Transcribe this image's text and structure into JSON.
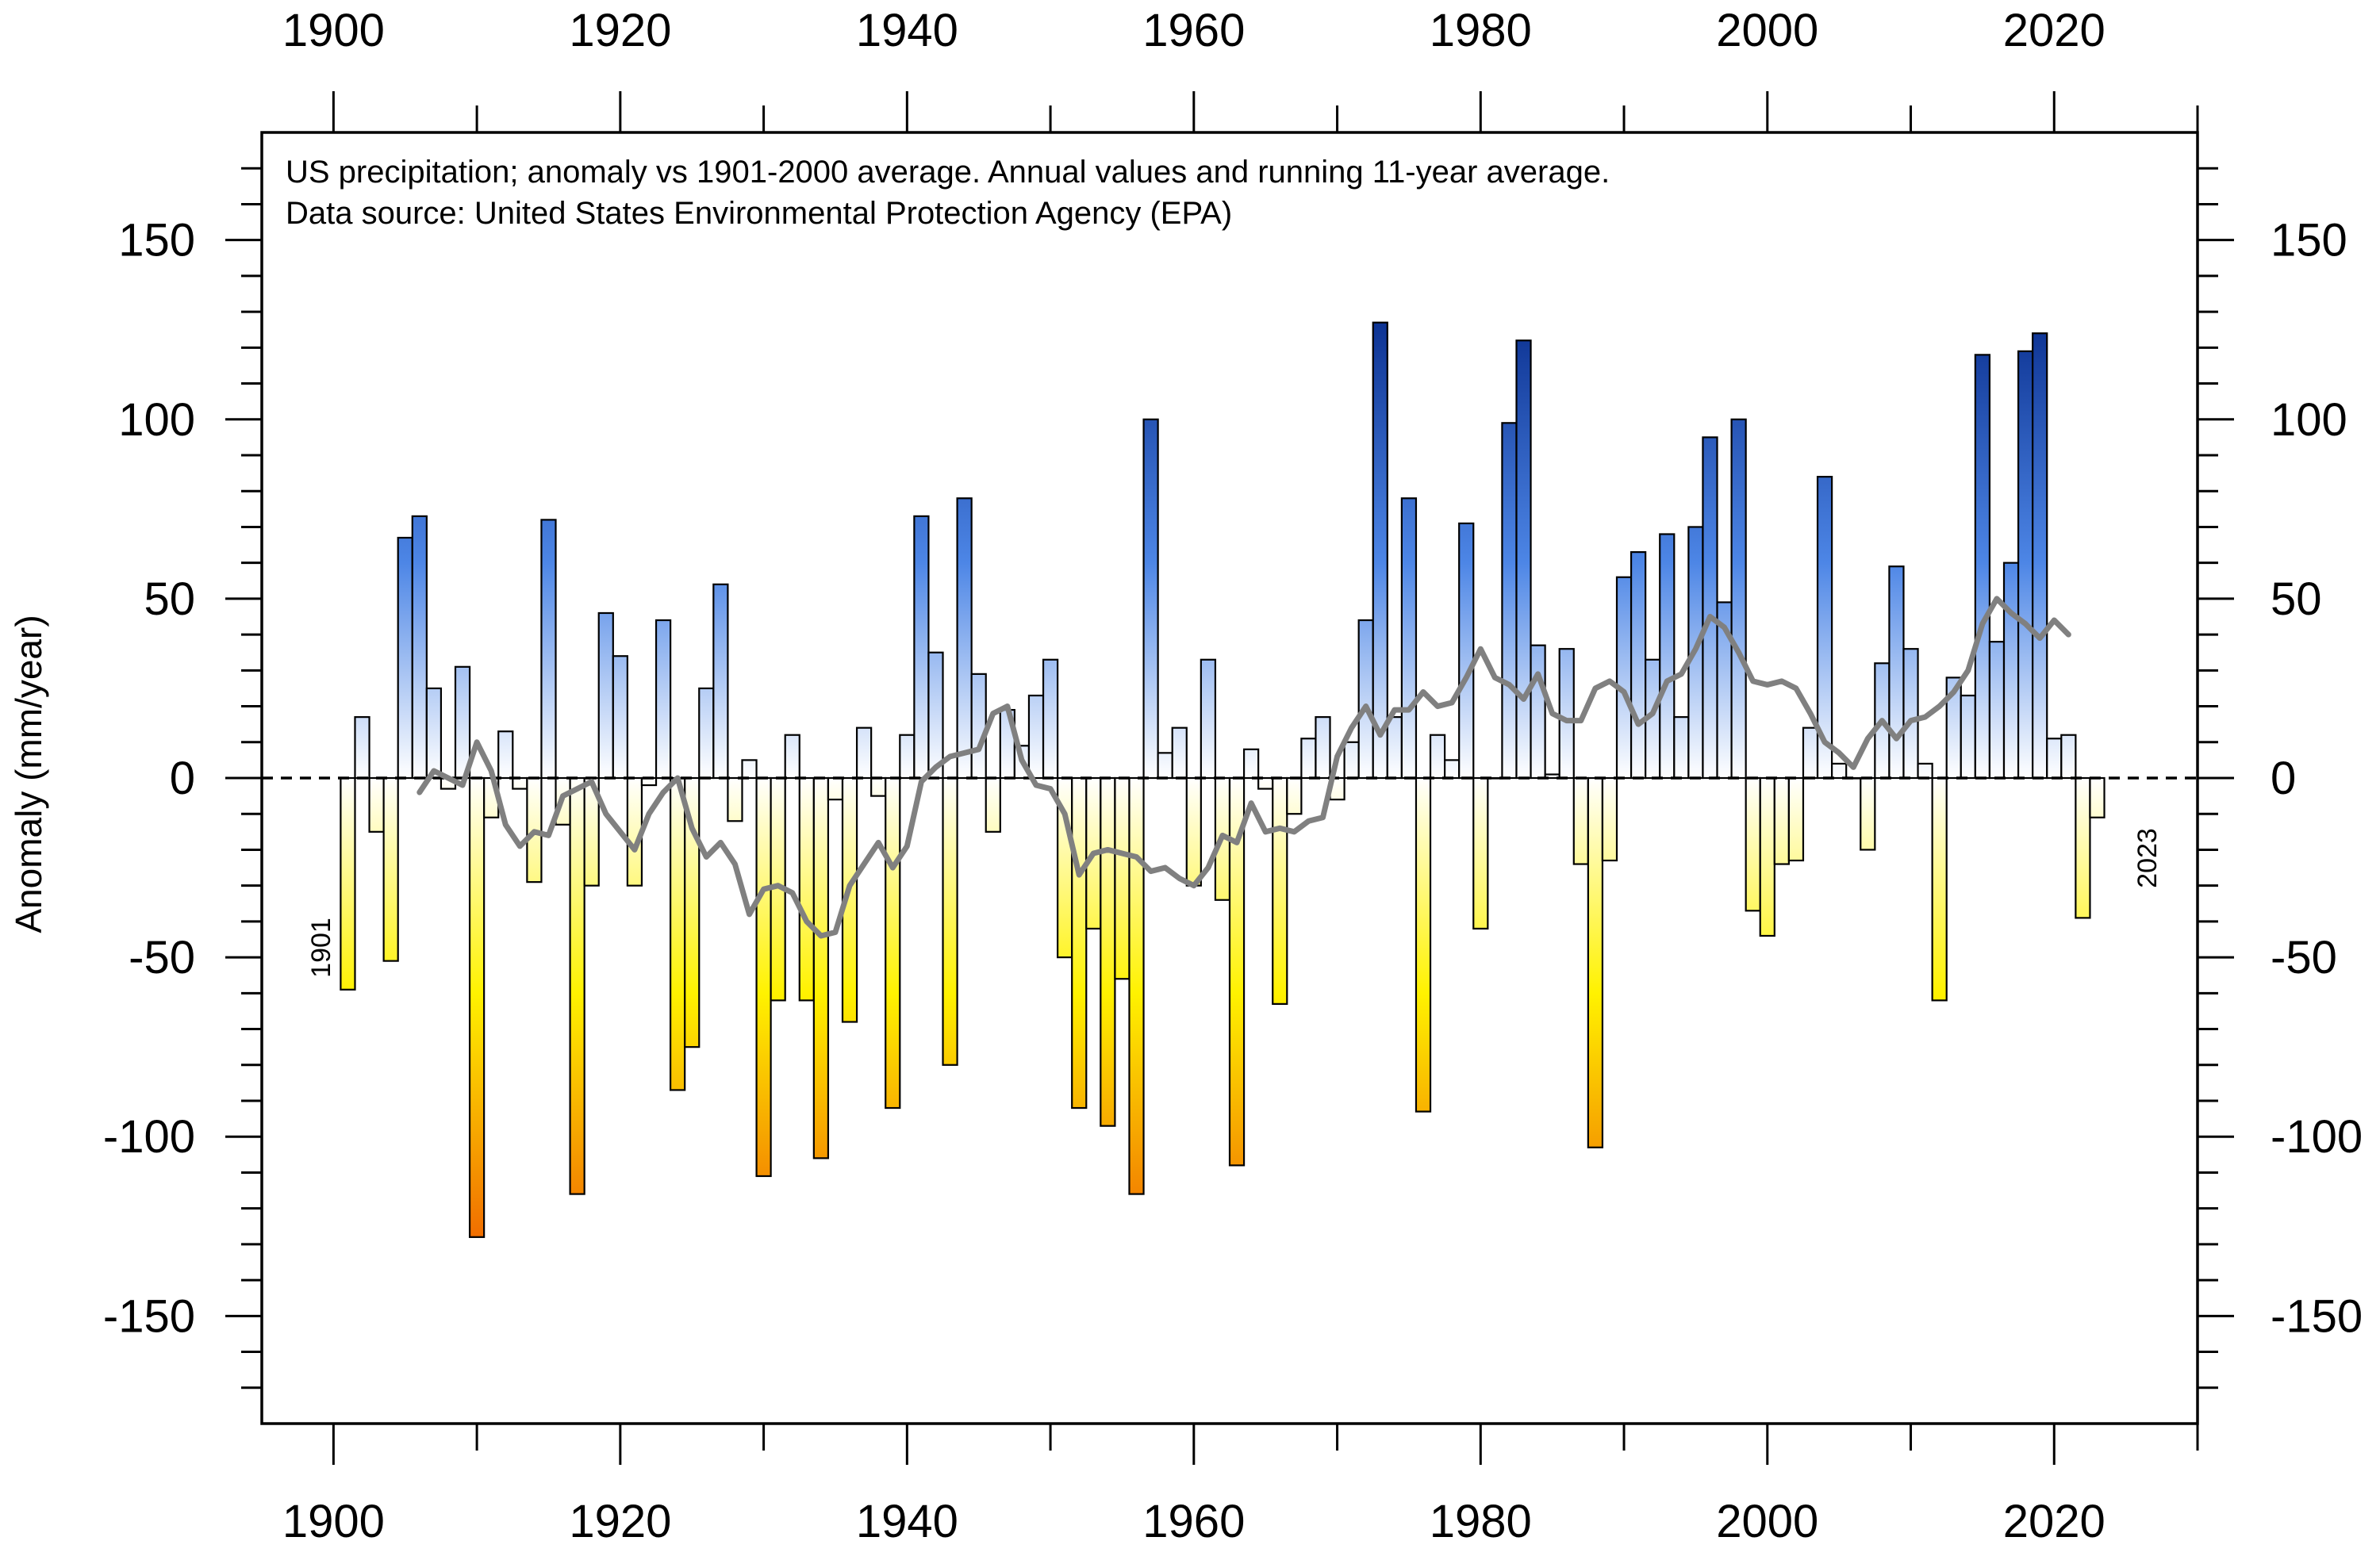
{
  "chart_data": {
    "type": "bar",
    "subtype": "step-histogram with running-average line",
    "title": "US precipitation; anomaly vs 1901-2000 average. Annual values and running 11-year average.",
    "subtitle": "Data source: United States Environmental Protection Agency (EPA)",
    "xlabel": "",
    "ylabel": "Anomaly (mm/year)",
    "xlim": [
      1895,
      2030
    ],
    "ylim": [
      -180,
      180
    ],
    "x_ticks": [
      1900,
      1920,
      1940,
      1960,
      1980,
      2000,
      2020
    ],
    "y_ticks": [
      150,
      100,
      50,
      0,
      -50,
      -100,
      -150
    ],
    "y_tick_labels": [
      "150",
      "100",
      "50",
      "0",
      "-50",
      "-100",
      "-150"
    ],
    "zero_line": "dashed",
    "first_year_label": "1901",
    "last_year_label": "2023",
    "colors": {
      "positive_strong": "#0a2f8f",
      "positive_mid": "#4d86e6",
      "neutral": "#ffffff",
      "negative_mid": "#fff200",
      "negative_strong": "#f06a00",
      "running_mean": "#808080",
      "outline": "#000000"
    },
    "series": [
      {
        "name": "Annual anomaly",
        "start_year": 1901,
        "values": [
          -59,
          17,
          -15,
          -51,
          67,
          73,
          25,
          -3,
          31,
          -128,
          -11,
          13,
          -3,
          -29,
          72,
          -13,
          -116,
          -30,
          46,
          34,
          -30,
          -2,
          44,
          -87,
          -75,
          25,
          54,
          -12,
          5,
          -111,
          -62,
          12,
          -62,
          -106,
          -6,
          -68,
          14,
          -5,
          -92,
          12,
          73,
          35,
          -80,
          78,
          29,
          -15,
          19,
          9,
          23,
          33,
          -50,
          -92,
          -42,
          -97,
          -56,
          -116,
          100,
          7,
          14,
          -30,
          33,
          -34,
          -108,
          8,
          -3,
          -63,
          -10,
          11,
          17,
          -6,
          10,
          44,
          127,
          17,
          78,
          -93,
          12,
          5,
          71,
          -42,
          0,
          99,
          122,
          37,
          1,
          36,
          -24,
          -103,
          -23,
          56,
          63,
          33,
          68,
          17,
          70,
          95,
          49,
          100,
          -37,
          -44,
          -24,
          -23,
          14,
          84,
          4,
          0,
          -20,
          32,
          59,
          36,
          4,
          -62,
          28,
          23,
          118,
          38,
          60,
          119,
          124,
          11,
          12,
          -39,
          -11
        ]
      },
      {
        "name": "Running 11-year average",
        "start_year": 1906,
        "values": [
          -4,
          2,
          0,
          -2,
          10,
          2,
          -13,
          -19,
          -15,
          -16,
          -5,
          -3,
          -1,
          -10,
          -15,
          -20,
          -10,
          -4,
          0,
          -14,
          -22,
          -18,
          -24,
          -38,
          -31,
          -30,
          -32,
          -40,
          -44,
          -43,
          -30,
          -24,
          -18,
          -25,
          -19,
          -1,
          3,
          6,
          7,
          8,
          18,
          20,
          5,
          -2,
          -3,
          -10,
          -27,
          -21,
          -20,
          -21,
          -22,
          -26,
          -25,
          -28,
          -30,
          -25,
          -16,
          -18,
          -7,
          -15,
          -14,
          -15,
          -12,
          -11,
          6,
          14,
          20,
          12,
          19,
          19,
          24,
          20,
          21,
          28,
          36,
          28,
          26,
          22,
          29,
          18,
          16,
          16,
          25,
          27,
          24,
          15,
          18,
          27,
          29,
          36,
          45,
          42,
          35,
          27,
          26,
          27,
          25,
          18,
          10,
          7,
          3,
          11,
          16,
          11,
          16,
          17,
          20,
          24,
          30,
          43,
          50,
          46,
          43,
          39,
          44,
          40
        ]
      }
    ]
  }
}
